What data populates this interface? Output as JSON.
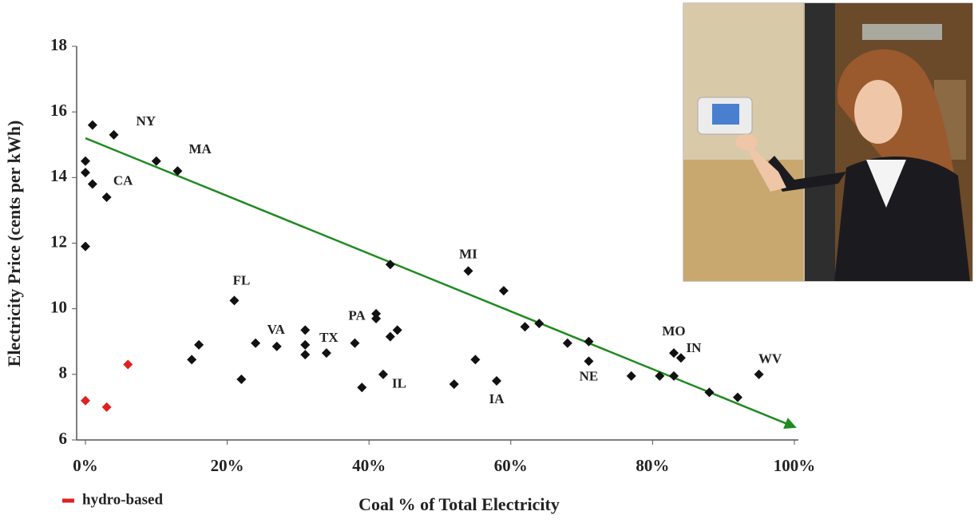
{
  "chart_data": {
    "type": "scatter",
    "x_label": "Coal % of Total Electricity",
    "y_label": "Electricity Price (cents per kWh)",
    "xlim": [
      0,
      100
    ],
    "ylim": [
      6,
      18
    ],
    "xticks": [
      {
        "value": 0,
        "label": "0%"
      },
      {
        "value": 20,
        "label": "20%"
      },
      {
        "value": 40,
        "label": "40%"
      },
      {
        "value": 60,
        "label": "60%"
      },
      {
        "value": 80,
        "label": "80%"
      },
      {
        "value": 100,
        "label": "100%"
      }
    ],
    "yticks": [
      6,
      8,
      10,
      12,
      14,
      16,
      18
    ],
    "grid": false,
    "legend": "lower-left",
    "series": [
      {
        "color": "#111111",
        "x": [
          1,
          4,
          0,
          0,
          1,
          3,
          0,
          10,
          13,
          43,
          54,
          59,
          21,
          41,
          41,
          62,
          64,
          44,
          43,
          31,
          31,
          31,
          34,
          38,
          24,
          27,
          16,
          15,
          22,
          39,
          42,
          55,
          52,
          58,
          68,
          71,
          71,
          77,
          81,
          83,
          84,
          83,
          88,
          92,
          95
        ],
        "y": [
          15.6,
          15.3,
          14.5,
          14.15,
          13.8,
          13.4,
          11.9,
          14.5,
          14.2,
          11.35,
          11.15,
          10.55,
          10.25,
          9.85,
          9.7,
          9.45,
          9.55,
          9.35,
          9.15,
          9.35,
          8.9,
          8.6,
          8.65,
          8.95,
          8.95,
          8.85,
          8.9,
          8.45,
          7.85,
          7.6,
          8.0,
          8.45,
          7.7,
          7.8,
          8.95,
          9.0,
          8.4,
          7.95,
          7.95,
          8.65,
          8.5,
          7.95,
          7.45,
          7.3,
          8.0
        ],
        "labels": [
          null,
          "NY",
          null,
          null,
          "CA",
          null,
          null,
          null,
          "MA",
          null,
          "MI",
          null,
          "FL",
          "PA",
          null,
          null,
          null,
          null,
          null,
          null,
          null,
          null,
          "TX",
          null,
          null,
          "VA",
          null,
          null,
          null,
          null,
          "IL",
          null,
          null,
          "IA",
          null,
          null,
          "NE",
          null,
          null,
          "MO",
          "IN",
          null,
          null,
          null,
          "WV"
        ]
      },
      {
        "name": "hydro-based",
        "color": "#e02020",
        "x": [
          0,
          3,
          6
        ],
        "y": [
          7.2,
          7.0,
          8.3
        ]
      }
    ],
    "trend_line": {
      "color": "#1f8a1f",
      "x": [
        0,
        100
      ],
      "y": [
        15.2,
        6.4
      ]
    }
  }
}
